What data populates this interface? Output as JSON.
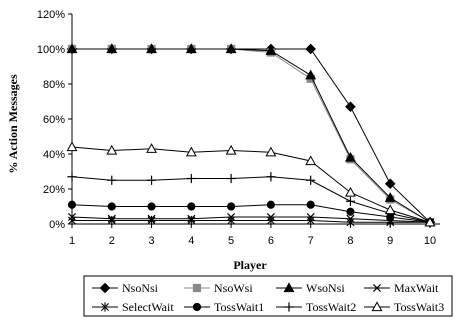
{
  "chart_data": {
    "type": "line",
    "xlabel": "Player",
    "ylabel": "% Action Messages",
    "x": [
      1,
      2,
      3,
      4,
      5,
      6,
      7,
      8,
      9,
      10
    ],
    "ylim": [
      0,
      120
    ],
    "y_ticks": [
      "0%",
      "20%",
      "40%",
      "60%",
      "80%",
      "100%",
      "120%"
    ],
    "grid": false,
    "legend": "bottom",
    "series": [
      {
        "name": "NsoNsi",
        "marker": "diamond",
        "color": "#000000",
        "values": [
          100,
          100,
          100,
          100,
          100,
          100,
          100,
          67,
          23,
          1
        ]
      },
      {
        "name": "NsoWsi",
        "marker": "square",
        "color": "#888888",
        "values": [
          100,
          100,
          100,
          100,
          100,
          98,
          83,
          37,
          14,
          1
        ]
      },
      {
        "name": "WsoNsi",
        "marker": "triangle",
        "color": "#000000",
        "values": [
          100,
          100,
          100,
          100,
          100,
          99,
          85,
          38,
          15,
          1
        ]
      },
      {
        "name": "MaxWait",
        "marker": "x",
        "color": "#000000",
        "values": [
          4,
          3,
          3,
          3,
          4,
          4,
          4,
          3,
          2,
          1
        ]
      },
      {
        "name": "SelectWait",
        "marker": "star",
        "color": "#000000",
        "values": [
          2,
          2,
          2,
          2,
          2,
          2,
          2,
          1,
          1,
          1
        ]
      },
      {
        "name": "TossWait1",
        "marker": "circle",
        "color": "#000000",
        "values": [
          11,
          10,
          10,
          10,
          10,
          11,
          11,
          7,
          4,
          1
        ]
      },
      {
        "name": "TossWait2",
        "marker": "plus",
        "color": "#000000",
        "values": [
          27,
          25,
          25,
          26,
          26,
          27,
          25,
          13,
          6,
          1
        ]
      },
      {
        "name": "TossWait3",
        "marker": "triangle-open",
        "color": "#000000",
        "values": [
          44,
          42,
          43,
          41,
          42,
          41,
          36,
          18,
          8,
          1
        ]
      }
    ]
  }
}
